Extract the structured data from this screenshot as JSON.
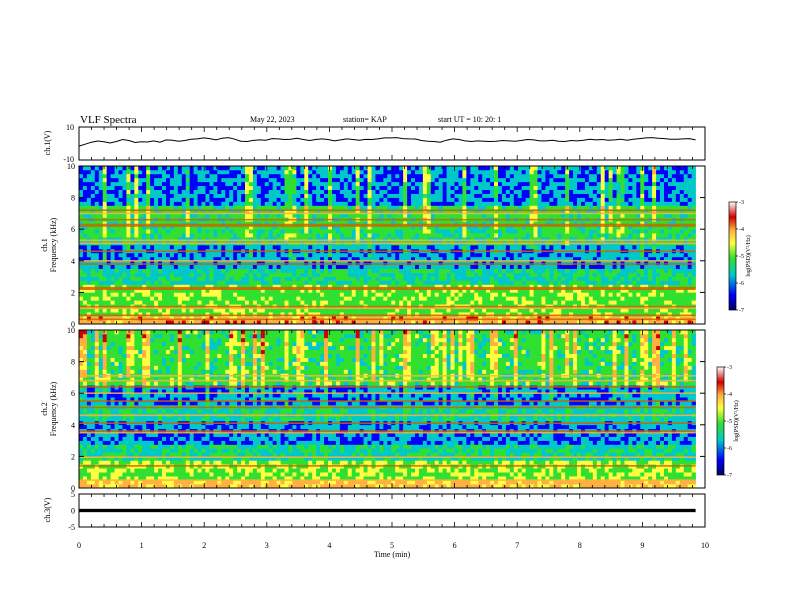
{
  "header": {
    "title": "VLF Spectra",
    "date": "May 22, 2023",
    "station": "station= KAP",
    "start": "start UT =  10: 20: 1"
  },
  "chart_data": [
    {
      "type": "line",
      "panel": "ch1-waveform",
      "ylabel": "ch.1(V)",
      "ylim": [
        -10,
        10
      ],
      "yticks": [
        "10",
        "-10"
      ],
      "xlim": [
        0,
        10
      ],
      "trace_range_min": [
        0,
        9.85
      ],
      "y": [
        -1.6,
        -0.4,
        0.8,
        1.5,
        1.0,
        0.3,
        1.2,
        2.4,
        1.8,
        0.6,
        1.0,
        0.9,
        1.6,
        0.8,
        2.2,
        2.0,
        1.4,
        1.8,
        2.6,
        2.8,
        3.4,
        3.0,
        2.2,
        3.2,
        3.6,
        2.6,
        1.4,
        1.2,
        1.9,
        2.2,
        2.0,
        3.0,
        2.8,
        2.4,
        2.6,
        3.2,
        2.4,
        1.8,
        2.4,
        2.8,
        2.4,
        1.6,
        2.2,
        2.8,
        2.4,
        2.0,
        2.5,
        2.4,
        2.8,
        3.4,
        3.4,
        3.6,
        3.0,
        2.8,
        2.7,
        1.8,
        1.4,
        1.2,
        0.8,
        2.0,
        2.8,
        2.4,
        1.6,
        1.2,
        1.6,
        1.4,
        1.2,
        1.4,
        1.8,
        1.6,
        1.4,
        1.8,
        2.4,
        2.2,
        1.6,
        1.6,
        2.0,
        1.4,
        1.2,
        1.8,
        1.6,
        2.0,
        2.6,
        2.2,
        2.4,
        2.0,
        2.2,
        2.6,
        2.0,
        2.6,
        3.0,
        3.4,
        3.6,
        3.2,
        3.0,
        2.6,
        2.6,
        2.8,
        3.0,
        2.2
      ]
    },
    {
      "type": "heatmap",
      "panel": "ch1-spectrogram",
      "ylabel_lines": [
        "ch.1",
        "Frequency (kHz)"
      ],
      "ylim": [
        0,
        10
      ],
      "yticks": [
        "0",
        "2",
        "4",
        "6",
        "8",
        "10"
      ],
      "xlim": [
        0,
        10
      ],
      "data_extent_min": [
        0,
        9.85
      ],
      "lines_kHz": [
        0.3,
        0.55,
        1.0,
        1.1,
        2.2,
        2.3,
        3.8,
        4.0,
        4.6,
        5.1,
        5.3,
        6.2,
        6.3,
        6.6,
        7.0,
        7.2
      ],
      "colorbar": {
        "label": "log(PSD)(V²/Hz)",
        "range": [
          -7,
          -3
        ],
        "ticks": [
          "-3",
          "-4",
          "-5",
          "-6",
          "-7"
        ],
        "colors": [
          "#ffffff",
          "#d00000",
          "#ffb040",
          "#ffff40",
          "#30e030",
          "#00c8c8",
          "#0000ff",
          "#000060"
        ]
      }
    },
    {
      "type": "heatmap",
      "panel": "ch2-spectrogram",
      "ylabel_lines": [
        "ch.2",
        "Frequency (kHz)"
      ],
      "ylim": [
        0,
        10
      ],
      "yticks": [
        "0",
        "2",
        "4",
        "6",
        "8",
        "10"
      ],
      "xlim": [
        0,
        10
      ],
      "data_extent_min": [
        0,
        9.85
      ],
      "lines_kHz": [
        0.5,
        1.4,
        1.95,
        3.5,
        3.6,
        4.1,
        4.6,
        5.1,
        5.5,
        6.0,
        6.4,
        6.8,
        7.1
      ],
      "colorbar": {
        "label": "log(PSD)(V²/Hz)",
        "range": [
          -7,
          -3
        ],
        "ticks": [
          "-3",
          "-4",
          "-5",
          "-6",
          "-7"
        ],
        "colors": [
          "#ffffff",
          "#d00000",
          "#ffb040",
          "#ffff40",
          "#30e030",
          "#00c8c8",
          "#0000ff",
          "#000060"
        ]
      }
    },
    {
      "type": "line",
      "panel": "ch3-waveform",
      "ylabel": "ch.3(V)",
      "ylim": [
        -5,
        5
      ],
      "yticks": [
        "5",
        "0",
        "-5"
      ],
      "xlim": [
        0,
        10
      ],
      "trace_range_min": [
        0,
        9.85
      ],
      "band_range_V": [
        -0.5,
        0.5
      ]
    }
  ],
  "xaxis": {
    "label": "Time (min)",
    "ticks": [
      "0",
      "1",
      "2",
      "3",
      "4",
      "5",
      "6",
      "7",
      "8",
      "9",
      "10"
    ]
  }
}
